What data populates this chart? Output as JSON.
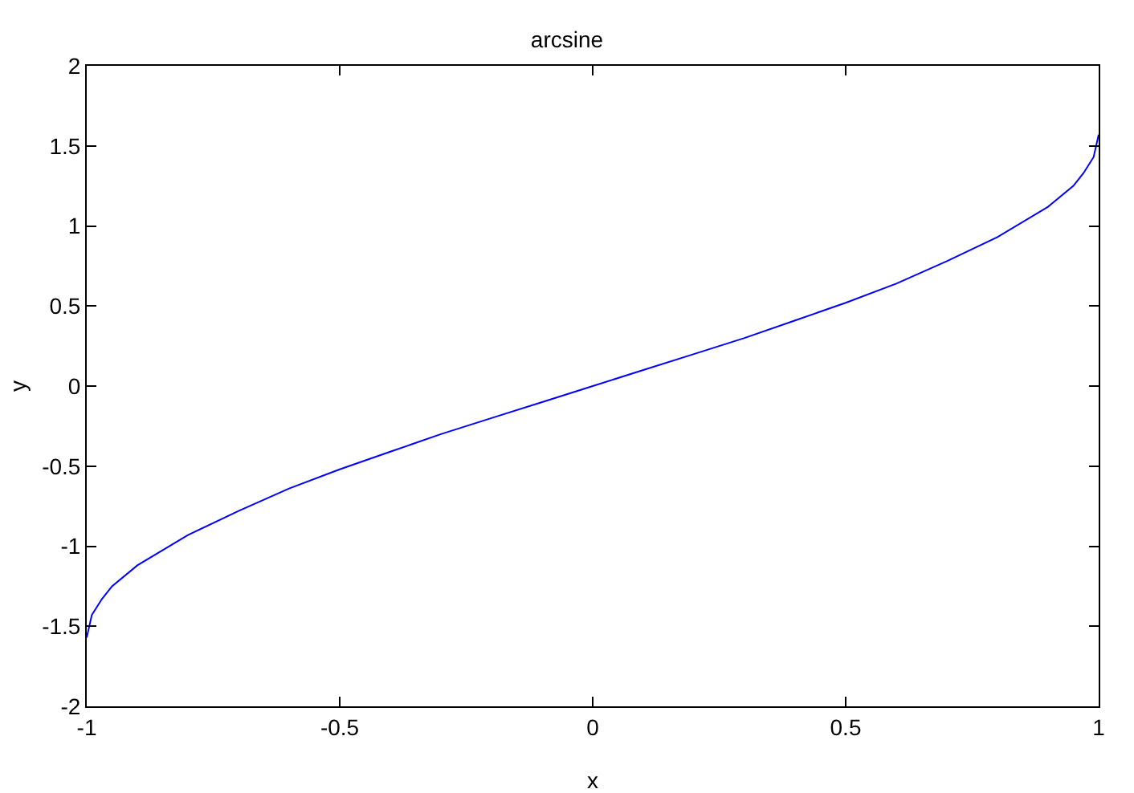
{
  "chart_data": {
    "type": "line",
    "title": "arcsine",
    "xlabel": "x",
    "ylabel": "y",
    "x": [
      -1,
      -0.99,
      -0.97,
      -0.95,
      -0.9,
      -0.8,
      -0.7,
      -0.6,
      -0.5,
      -0.4,
      -0.3,
      -0.2,
      -0.1,
      0,
      0.1,
      0.2,
      0.3,
      0.4,
      0.5,
      0.6,
      0.7,
      0.8,
      0.9,
      0.95,
      0.97,
      0.99,
      1
    ],
    "series": [
      {
        "color": "#0000ff",
        "values": [
          -1.57,
          -1.43,
          -1.33,
          -1.25,
          -1.12,
          -0.93,
          -0.78,
          -0.64,
          -0.52,
          -0.41,
          -0.3,
          -0.2,
          -0.1,
          0,
          0.1,
          0.2,
          0.3,
          0.41,
          0.52,
          0.64,
          0.78,
          0.93,
          1.12,
          1.25,
          1.33,
          1.43,
          1.57
        ]
      }
    ],
    "xlim": [
      -1,
      1
    ],
    "xticks": [
      -1,
      -0.5,
      0,
      0.5,
      1
    ],
    "ylim": [
      -2,
      2
    ],
    "yticks": [
      -2,
      -1.5,
      -1,
      -0.5,
      0,
      0.5,
      1,
      1.5,
      2
    ],
    "grid": false,
    "marker": "none",
    "line_style": "solid"
  }
}
